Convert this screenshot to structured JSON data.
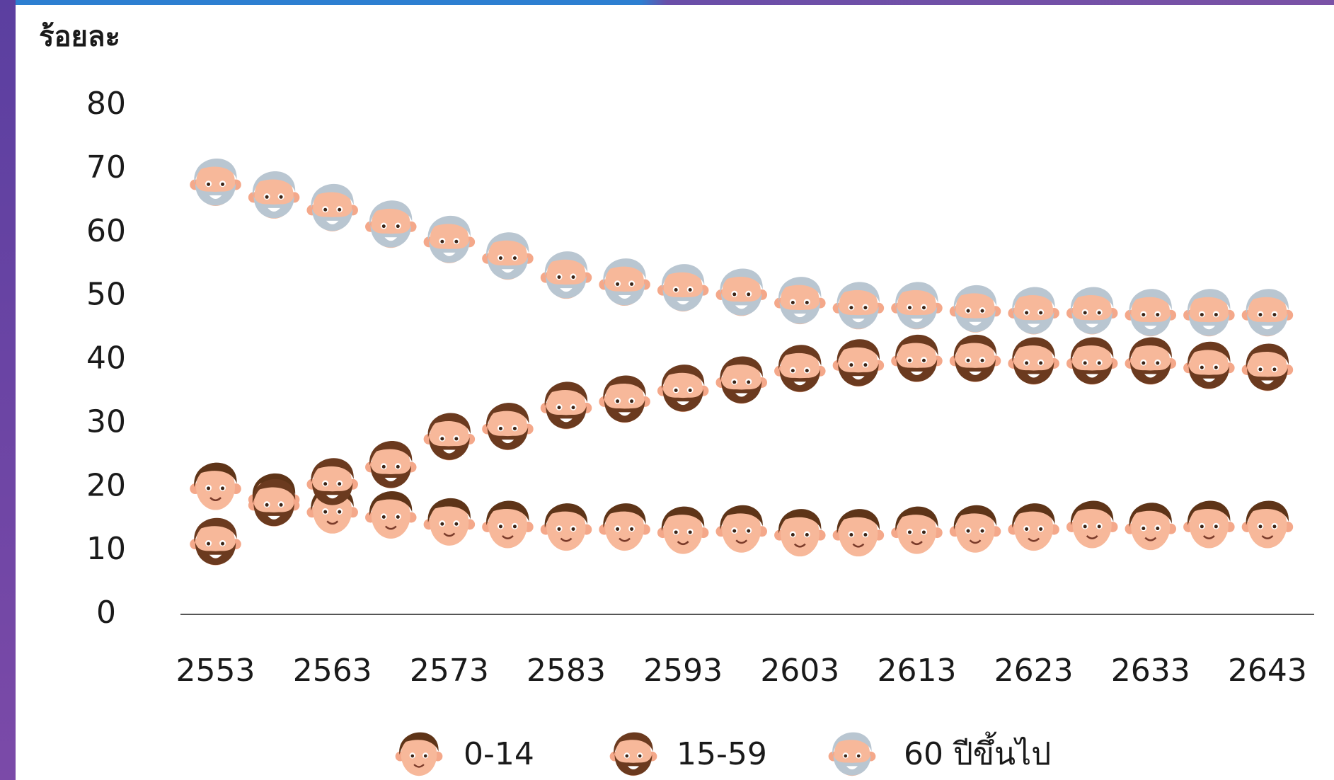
{
  "chart_data": {
    "type": "scatter",
    "y_label": "ร้อยละ",
    "x": [
      2553,
      2558,
      2563,
      2568,
      2573,
      2578,
      2583,
      2588,
      2593,
      2598,
      2603,
      2608,
      2613,
      2618,
      2623,
      2628,
      2633,
      2638,
      2643
    ],
    "xlim": [
      2550,
      2647
    ],
    "xticks": [
      2553,
      2563,
      2573,
      2583,
      2593,
      2603,
      2613,
      2623,
      2633,
      2643
    ],
    "ylim": [
      0,
      80
    ],
    "yticks": [
      0,
      10,
      20,
      30,
      40,
      50,
      60,
      70,
      80
    ],
    "series": [
      {
        "name": "0-14",
        "color": "#5e3418",
        "values": [
          20.3,
          18.6,
          16.6,
          15.8,
          14.7,
          14.3,
          13.9,
          13.9,
          13.4,
          13.6,
          13.0,
          13.0,
          13.4,
          13.6,
          13.9,
          14.3,
          14.0,
          14.3,
          14.3
        ]
      },
      {
        "name": "15-59",
        "color": "#6b3a1f",
        "values": [
          11.6,
          17.7,
          21.0,
          23.7,
          28.1,
          29.7,
          33.0,
          34.0,
          35.7,
          37.0,
          38.8,
          39.7,
          40.4,
          40.4,
          40.0,
          40.0,
          40.0,
          39.3,
          39.0
        ]
      },
      {
        "name": "60 ปีขึ้นไป",
        "color": "#b9c6d1",
        "values": [
          68.1,
          66.1,
          64.1,
          61.5,
          59.1,
          56.5,
          53.5,
          52.4,
          51.5,
          50.8,
          49.5,
          48.7,
          48.7,
          48.2,
          47.9,
          47.9,
          47.6,
          47.6,
          47.6
        ]
      }
    ]
  }
}
